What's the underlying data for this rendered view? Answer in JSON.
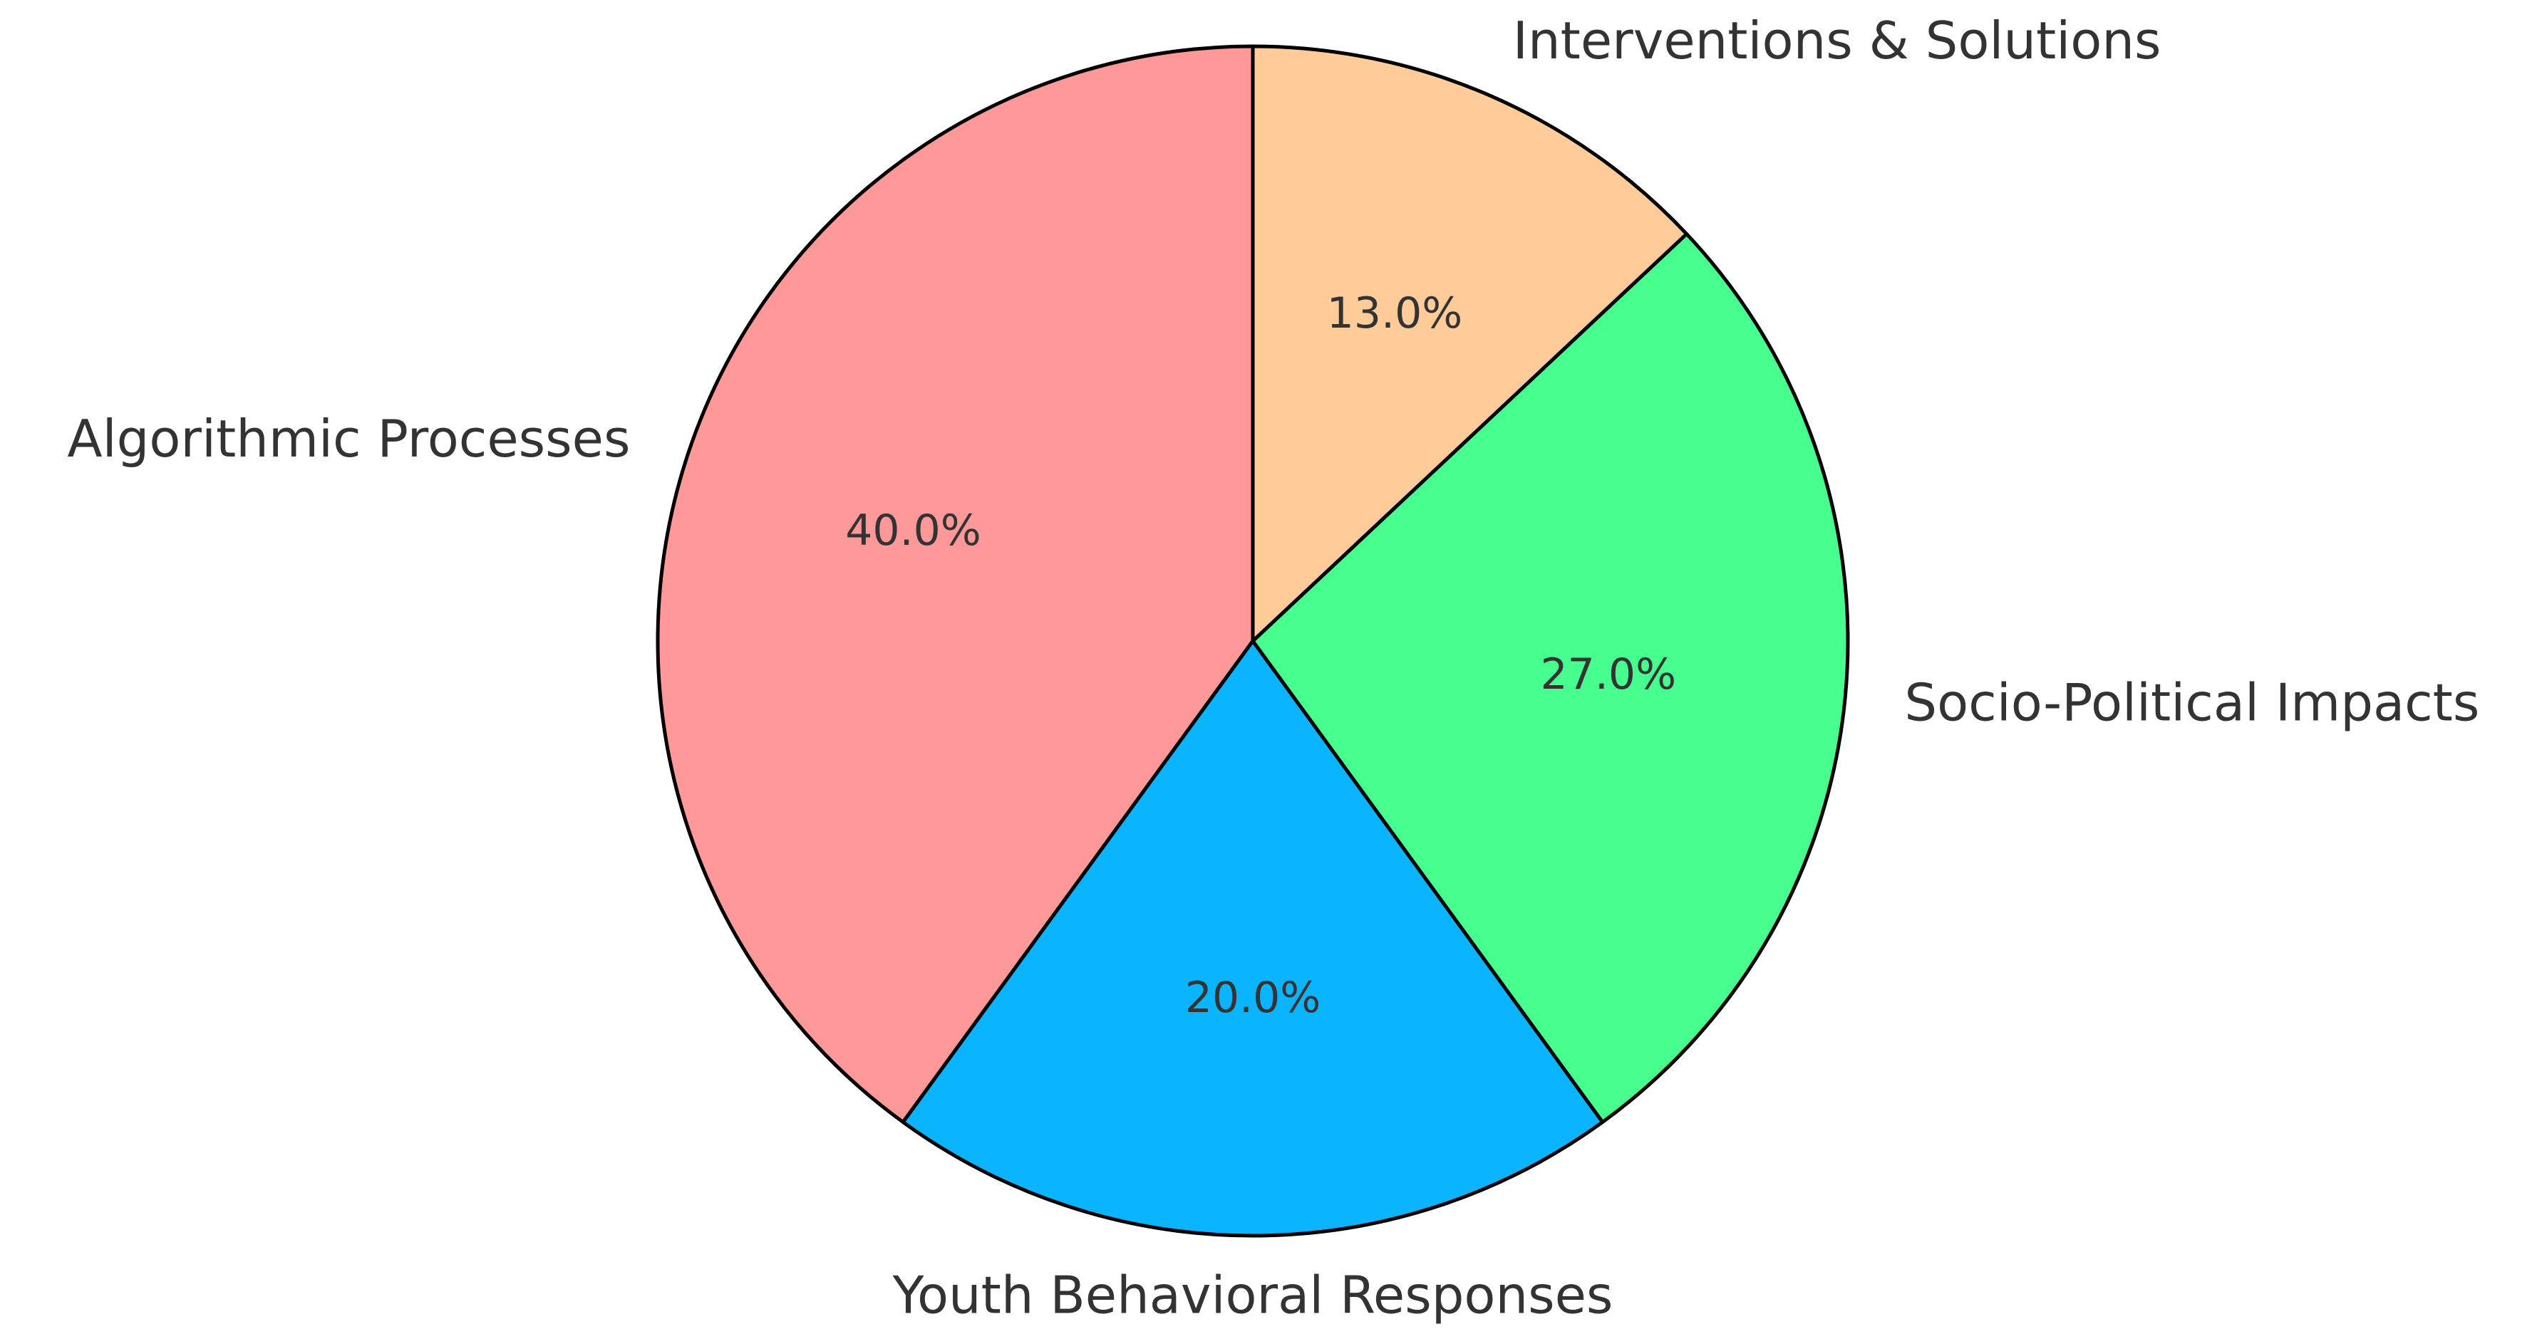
{
  "chart_data": {
    "type": "pie",
    "title": "",
    "start_angle_deg": 90,
    "direction": "counterclockwise",
    "slices": [
      {
        "label": "Algorithmic Processes",
        "value": 40.0,
        "pct_label": "40.0%",
        "color": "#FF9999"
      },
      {
        "label": "Youth Behavioral Responses",
        "value": 20.0,
        "pct_label": "20.0%",
        "color": "#0AB4FF"
      },
      {
        "label": "Socio-Political Impacts",
        "value": 27.0,
        "pct_label": "27.0%",
        "color": "#47FF8F"
      },
      {
        "label": "Interventions & Solutions",
        "value": 13.0,
        "pct_label": "13.0%",
        "color": "#FFCC99"
      }
    ]
  }
}
